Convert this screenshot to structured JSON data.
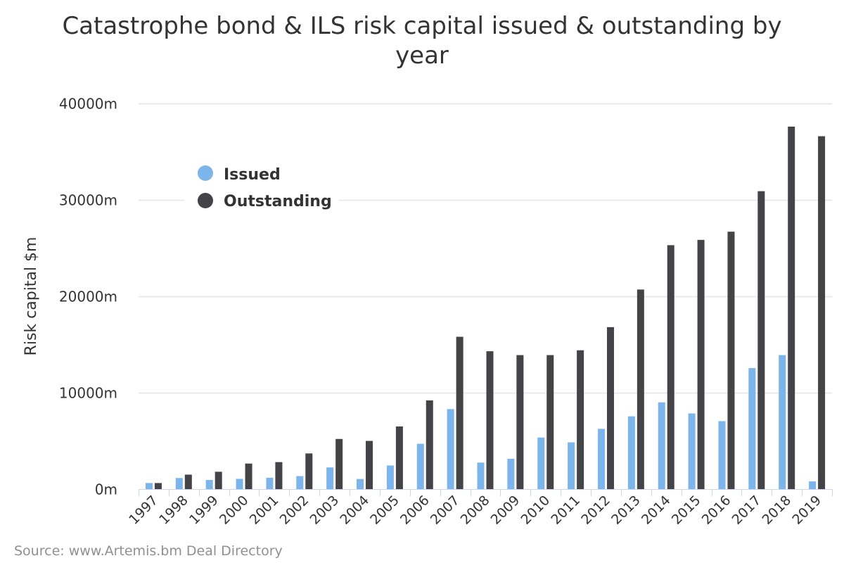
{
  "chart_data": {
    "type": "bar",
    "title": "Catastrophe bond & ILS risk capital issued & outstanding by year",
    "title_lines": [
      "Catastrophe bond & ILS risk capital issued & outstanding by",
      "year"
    ],
    "ylabel": "Risk capital $m",
    "xlabel": "",
    "ylim": [
      0,
      40000
    ],
    "yticks": [
      "0m",
      "10000m",
      "20000m",
      "30000m",
      "40000m"
    ],
    "ytick_values": [
      0,
      10000,
      20000,
      30000,
      40000
    ],
    "grid": true,
    "legend_position": "top-left",
    "categories": [
      "1997",
      "1998",
      "1999",
      "2000",
      "2001",
      "2002",
      "2003",
      "2004",
      "2005",
      "2006",
      "2007",
      "2008",
      "2009",
      "2010",
      "2011",
      "2012",
      "2013",
      "2014",
      "2015",
      "2016",
      "2017",
      "2018",
      "2019"
    ],
    "series": [
      {
        "name": "Issued",
        "color": "#7cb5ec",
        "values": [
          630,
          1150,
          950,
          1060,
          1180,
          1350,
          2250,
          1050,
          2450,
          4700,
          8300,
          2750,
          3150,
          5350,
          4850,
          6250,
          7550,
          9000,
          7850,
          7050,
          12550,
          13900,
          800
        ]
      },
      {
        "name": "Outstanding",
        "color": "#434348",
        "values": [
          630,
          1500,
          1800,
          2650,
          2800,
          3700,
          5200,
          5000,
          6500,
          9200,
          15800,
          14300,
          13900,
          13900,
          14400,
          16800,
          20700,
          25300,
          25850,
          26700,
          30900,
          37600,
          36600
        ]
      }
    ]
  },
  "credit": "Source: www.Artemis.bm Deal Directory"
}
